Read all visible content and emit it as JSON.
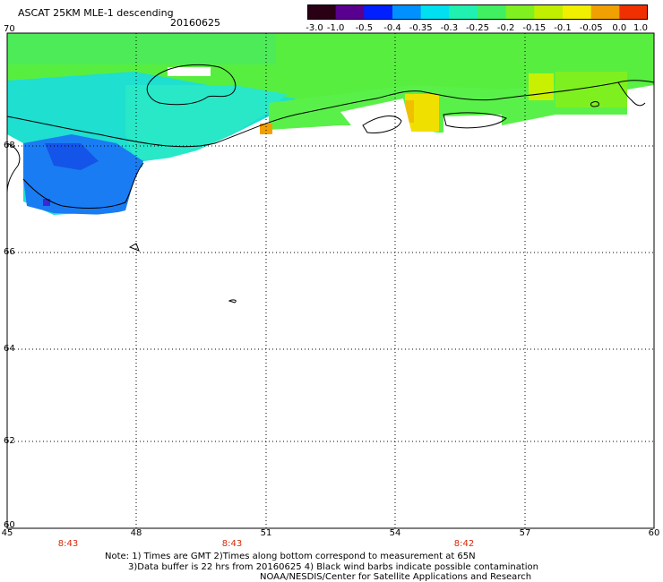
{
  "header": {
    "title": "ASCAT 25KM MLE-1 descending",
    "date": "20160625"
  },
  "colorbar": {
    "labels": [
      "-3.0",
      "-1.0",
      "-0.5",
      "-0.4",
      "-0.35",
      "-0.3",
      "-0.25",
      "-0.2",
      "-0.15",
      "-0.1",
      "-0.05",
      "0.0",
      "1.0"
    ],
    "colors": [
      "#2a0015",
      "#5a0090",
      "#0020ff",
      "#0090ff",
      "#00e0f0",
      "#20f0b0",
      "#40f060",
      "#80f020",
      "#c0f000",
      "#f0f000",
      "#f0a000",
      "#f03000"
    ]
  },
  "map": {
    "lat_labels": [
      "70",
      "68",
      "66",
      "64",
      "62",
      "60"
    ],
    "lon_labels": [
      "45",
      "48",
      "51",
      "54",
      "57",
      "60"
    ],
    "time_labels": [
      "8:43",
      "8:43",
      "8:42"
    ],
    "coastline_color": "#000000",
    "grid": "dotted"
  },
  "notes": {
    "line1": "Note: 1) Times are GMT 2)Times along bottom correspond to measurement at 65N",
    "line2": "3)Data buffer is 22 hrs from 20160625 4) Black wind barbs indicate possible contamination",
    "line3": "NOAA/NESDIS/Center for Satellite Applications and Research"
  }
}
